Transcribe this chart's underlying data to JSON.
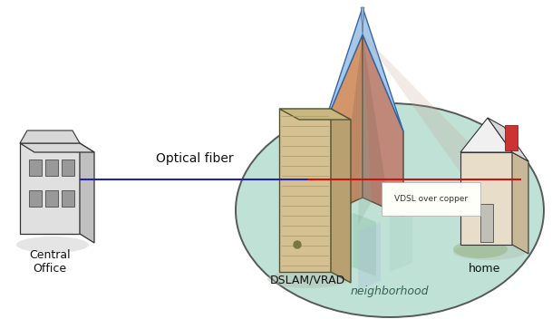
{
  "background_color": "#ffffff",
  "optical_fiber_label": "Optical fiber",
  "vdsl_label": "VDSL over copper",
  "dslam_label": "DSLAM/VRAD",
  "neighborhood_label": "neighborhood",
  "home_label": "home",
  "central_office_label": "Central\nOffice",
  "blue_color": "#2222aa",
  "red_color": "#cc1111",
  "ellipse_fc": "#b8ddd0",
  "ellipse_ec": "#444444",
  "tower_orange": "#d4956a",
  "tower_red": "#c08878",
  "tower_blue": "#a8c8e8",
  "tower_blue_dark": "#88aacc",
  "server_front": "#d4c090",
  "server_side": "#b8a070",
  "server_top": "#c8b880",
  "server_stripe": "#c0a878",
  "house_front": "#e8ddc8",
  "house_side": "#c8b898",
  "house_roof_front": "#f0f0f0",
  "house_roof_side": "#d8d8d8",
  "house_chimney": "#cc3333",
  "office_front": "#e0e0e0",
  "office_side": "#c0c0c0",
  "office_roof": "#d8d8d8",
  "office_window": "#999999",
  "shadow_color": "#aabbaa"
}
